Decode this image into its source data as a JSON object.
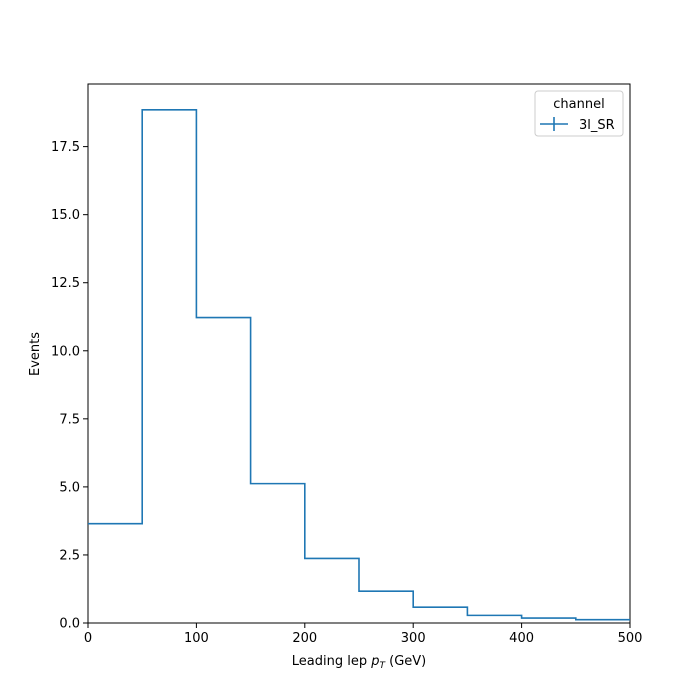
{
  "chart_data": {
    "type": "histogram-step",
    "x_edges": [
      0,
      50,
      100,
      150,
      200,
      250,
      300,
      350,
      400,
      450,
      500
    ],
    "series": [
      {
        "name": "3l_SR",
        "values": [
          3.65,
          18.85,
          11.22,
          5.12,
          2.37,
          1.17,
          0.58,
          0.28,
          0.18,
          0.12
        ],
        "color": "#1f77b4"
      }
    ],
    "xlabel_prefix": "Leading lep ",
    "xlabel_symbol": "p",
    "xlabel_subscript": "T",
    "xlabel_suffix": " (GeV)",
    "ylabel": "Events",
    "xlim": [
      0,
      500
    ],
    "ylim": [
      0,
      19.8
    ],
    "xticks": [
      0,
      100,
      200,
      300,
      400,
      500
    ],
    "xtick_labels": [
      "0",
      "100",
      "200",
      "300",
      "400",
      "500"
    ],
    "yticks": [
      0,
      2.5,
      5,
      7.5,
      10,
      12.5,
      15,
      17.5
    ],
    "ytick_labels": [
      "0.0",
      "2.5",
      "5.0",
      "7.5",
      "10.0",
      "12.5",
      "15.0",
      "17.5"
    ],
    "legend": {
      "title": "channel",
      "entries": [
        "3l_SR"
      ],
      "placement": "top-right"
    },
    "grid": false
  }
}
